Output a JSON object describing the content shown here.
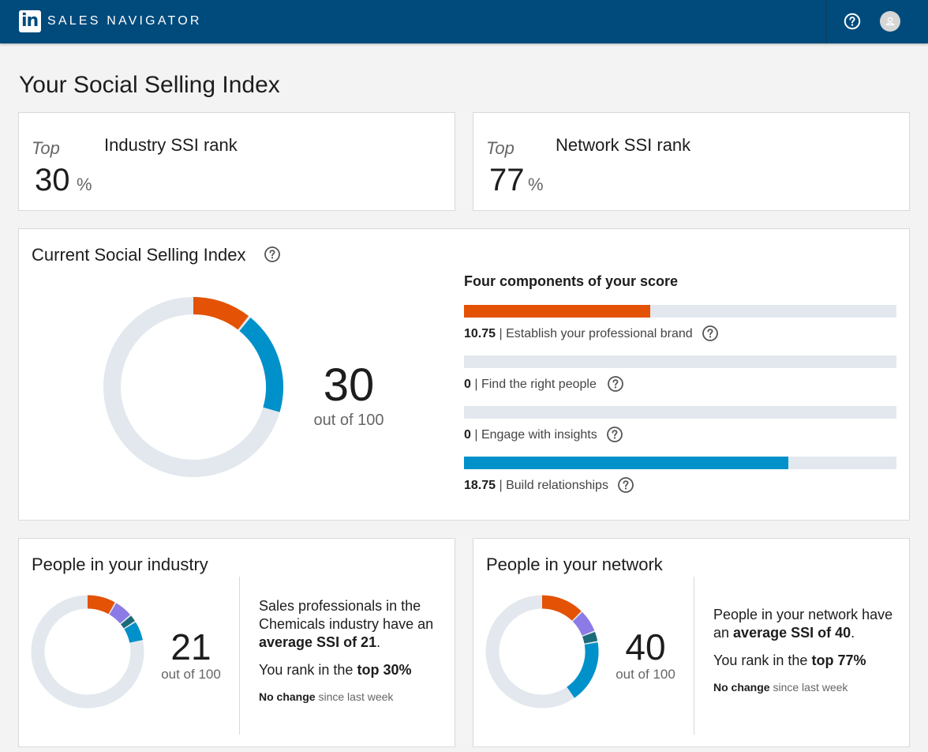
{
  "header": {
    "logo_text": "in",
    "brand": "SALES NAVIGATOR",
    "icons": [
      "help-icon",
      "avatar"
    ]
  },
  "page": {
    "title": "Your Social Selling Index"
  },
  "industry_rank": {
    "top_label": "Top",
    "value": "30",
    "unit": "%",
    "label": "Industry SSI rank"
  },
  "network_rank": {
    "top_label": "Top",
    "value": "77",
    "unit": "%",
    "label": "Network SSI rank"
  },
  "current_ssi": {
    "title": "Current Social Selling Index",
    "score": "30",
    "out_of": "out of 100",
    "components_heading": "Four components of your score",
    "components": [
      {
        "value": "10.75",
        "label": "| Establish your professional brand",
        "fraction": 0.43,
        "color": "#e35205"
      },
      {
        "value": "0",
        "label": "| Find the right people",
        "fraction": 0.0,
        "color": "#e35205"
      },
      {
        "value": "0",
        "label": "| Engage with insights",
        "fraction": 0.0,
        "color": "#e35205"
      },
      {
        "value": "18.75",
        "label": "| Build relationships",
        "fraction": 0.75,
        "color": "#0091ca"
      }
    ]
  },
  "industry_people": {
    "title": "People in your industry",
    "score": "21",
    "out_of": "out of 100",
    "desc_prefix": "Sales professionals in the Chemicals industry have an",
    "desc_bold": "average SSI of 21",
    "desc_suffix": ".",
    "rank_prefix": "You rank in the",
    "rank_bold": "top 30%",
    "change_bold": "No change",
    "change_rest": "since last week"
  },
  "network_people": {
    "title": "People in your network",
    "score": "40",
    "out_of": "out of 100",
    "desc_prefix": "People in your network have an",
    "desc_bold": "average SSI of 40",
    "desc_suffix": ".",
    "rank_prefix": "You rank in the",
    "rank_bold": "top 77%",
    "change_bold": "No change",
    "change_rest": "since last week"
  },
  "colors": {
    "header_bg": "#004b7c",
    "brand_orange": "#e35205",
    "insight_purple": "#8c7ae6",
    "insight_teal": "#1b6b78",
    "relation_blue": "#0091ca",
    "track": "#e2e8ee"
  }
}
